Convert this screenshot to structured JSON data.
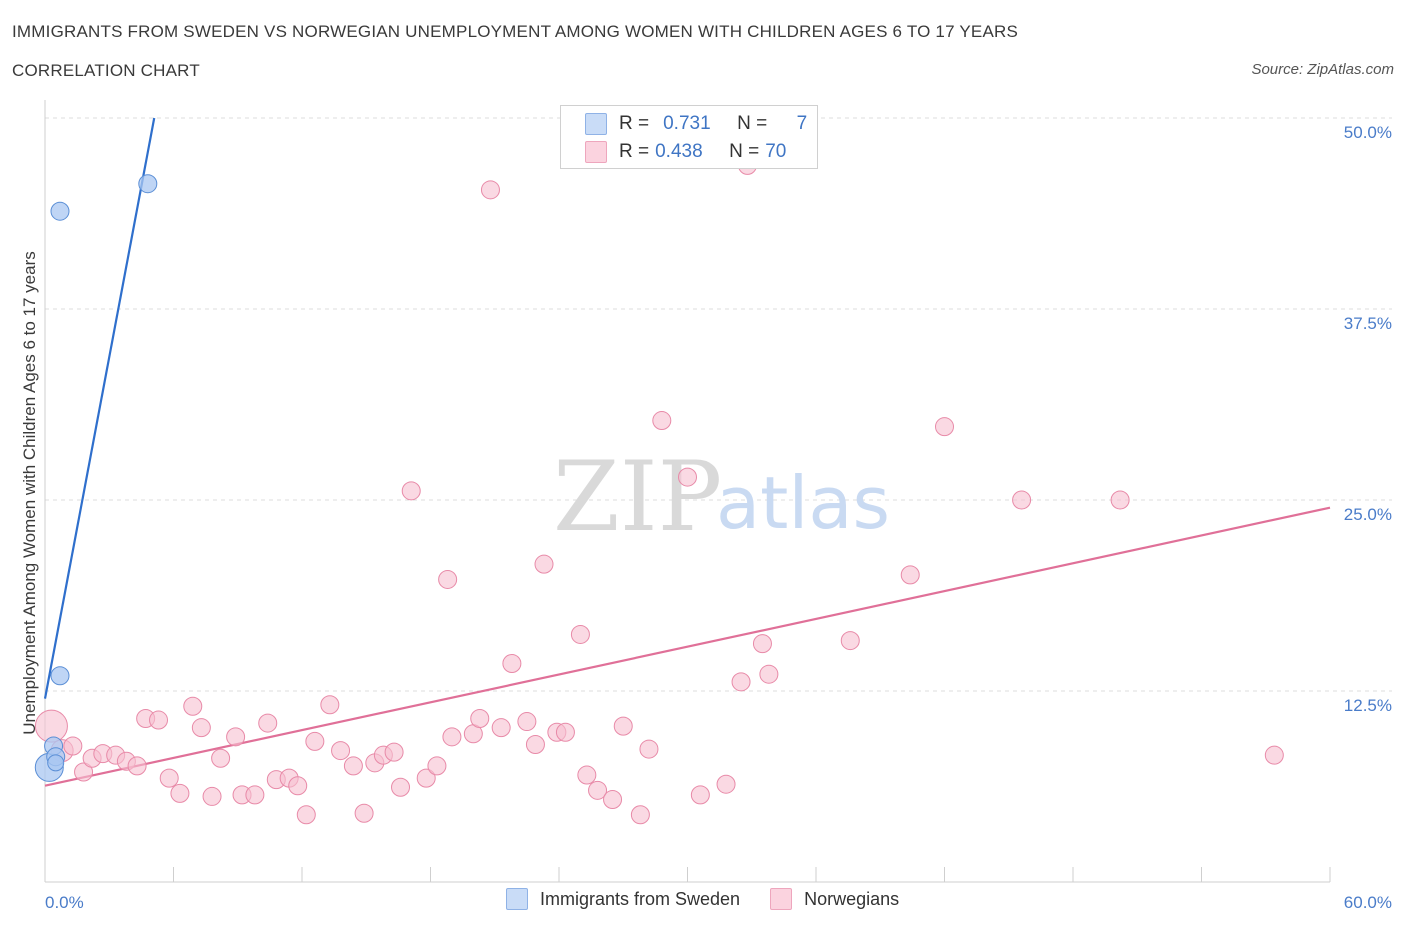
{
  "header": {
    "title": "IMMIGRANTS FROM SWEDEN VS NORWEGIAN UNEMPLOYMENT AMONG WOMEN WITH CHILDREN AGES 6 TO 17 YEARS",
    "subtitle": "CORRELATION CHART",
    "source": "Source: ZipAtlas.com"
  },
  "watermark": {
    "zip": "ZIP",
    "atlas": "atlas"
  },
  "legend": {
    "r_label": "R =",
    "n_label": "N =",
    "rows": [
      {
        "r": "0.731",
        "n": "7",
        "color": "#a9c7f2"
      },
      {
        "r": "0.438",
        "n": "70",
        "color": "#f7bfd0"
      }
    ]
  },
  "chart_data": {
    "type": "scatter",
    "ylabel": "Unemployment Among Women with Children Ages 6 to 17 years",
    "xlim": [
      0,
      60
    ],
    "ylim": [
      0,
      50
    ],
    "x_tick_labels": [
      "0.0%",
      "60.0%"
    ],
    "y_tick_values": [
      12.5,
      25.0,
      37.5,
      50.0
    ],
    "y_tick_labels": [
      "12.5%",
      "25.0%",
      "37.5%",
      "50.0%"
    ],
    "grid": "horizontal dashed",
    "legend_position": "top-center",
    "series": [
      {
        "name": "Immigrants from Sweden",
        "color": "#a9c7f2",
        "stroke": "#5b8fd6",
        "line_color": "#2f6fcc",
        "trend": {
          "x": [
            0.0,
            5.1
          ],
          "y": [
            12.0,
            50.0
          ]
        },
        "points": [
          {
            "x": 0.2,
            "y": 7.5,
            "size": 14
          },
          {
            "x": 0.4,
            "y": 8.9,
            "size": 9
          },
          {
            "x": 0.5,
            "y": 8.2,
            "size": 9
          },
          {
            "x": 0.5,
            "y": 7.8,
            "size": 8
          },
          {
            "x": 0.7,
            "y": 43.9,
            "size": 9
          },
          {
            "x": 0.7,
            "y": 13.5,
            "size": 9
          },
          {
            "x": 4.8,
            "y": 45.7,
            "size": 9
          }
        ]
      },
      {
        "name": "Norwegians",
        "color": "#f7bfd0",
        "stroke": "#e88aa8",
        "line_color": "#e07098",
        "trend": {
          "x": [
            0.0,
            60.0
          ],
          "y": [
            6.3,
            24.5
          ]
        },
        "points": [
          {
            "x": 0.3,
            "y": 10.2,
            "size": 16
          },
          {
            "x": 0.8,
            "y": 8.6,
            "size": 11
          },
          {
            "x": 1.3,
            "y": 8.9,
            "size": 9
          },
          {
            "x": 1.8,
            "y": 7.2,
            "size": 9
          },
          {
            "x": 2.2,
            "y": 8.1,
            "size": 9
          },
          {
            "x": 2.7,
            "y": 8.4,
            "size": 9
          },
          {
            "x": 3.3,
            "y": 8.3,
            "size": 9
          },
          {
            "x": 3.8,
            "y": 7.9,
            "size": 9
          },
          {
            "x": 4.3,
            "y": 7.6,
            "size": 9
          },
          {
            "x": 4.7,
            "y": 10.7,
            "size": 9
          },
          {
            "x": 5.3,
            "y": 10.6,
            "size": 9
          },
          {
            "x": 5.8,
            "y": 6.8,
            "size": 9
          },
          {
            "x": 6.3,
            "y": 5.8,
            "size": 9
          },
          {
            "x": 6.9,
            "y": 11.5,
            "size": 9
          },
          {
            "x": 7.3,
            "y": 10.1,
            "size": 9
          },
          {
            "x": 7.8,
            "y": 5.6,
            "size": 9
          },
          {
            "x": 8.2,
            "y": 8.1,
            "size": 9
          },
          {
            "x": 8.9,
            "y": 9.5,
            "size": 9
          },
          {
            "x": 9.2,
            "y": 5.7,
            "size": 9
          },
          {
            "x": 9.8,
            "y": 5.7,
            "size": 9
          },
          {
            "x": 10.4,
            "y": 10.4,
            "size": 9
          },
          {
            "x": 10.8,
            "y": 6.7,
            "size": 9
          },
          {
            "x": 11.4,
            "y": 6.8,
            "size": 9
          },
          {
            "x": 11.8,
            "y": 6.3,
            "size": 9
          },
          {
            "x": 12.2,
            "y": 4.4,
            "size": 9
          },
          {
            "x": 12.6,
            "y": 9.2,
            "size": 9
          },
          {
            "x": 13.3,
            "y": 11.6,
            "size": 9
          },
          {
            "x": 13.8,
            "y": 8.6,
            "size": 9
          },
          {
            "x": 14.4,
            "y": 7.6,
            "size": 9
          },
          {
            "x": 14.9,
            "y": 4.5,
            "size": 9
          },
          {
            "x": 15.4,
            "y": 7.8,
            "size": 9
          },
          {
            "x": 15.8,
            "y": 8.3,
            "size": 9
          },
          {
            "x": 16.3,
            "y": 8.5,
            "size": 9
          },
          {
            "x": 16.6,
            "y": 6.2,
            "size": 9
          },
          {
            "x": 17.1,
            "y": 25.6,
            "size": 9
          },
          {
            "x": 17.8,
            "y": 6.8,
            "size": 9
          },
          {
            "x": 18.3,
            "y": 7.6,
            "size": 9
          },
          {
            "x": 18.8,
            "y": 19.8,
            "size": 9
          },
          {
            "x": 19.0,
            "y": 9.5,
            "size": 9
          },
          {
            "x": 20.0,
            "y": 9.7,
            "size": 9
          },
          {
            "x": 20.3,
            "y": 10.7,
            "size": 9
          },
          {
            "x": 20.8,
            "y": 45.3,
            "size": 9
          },
          {
            "x": 21.3,
            "y": 10.1,
            "size": 9
          },
          {
            "x": 21.8,
            "y": 14.3,
            "size": 9
          },
          {
            "x": 22.5,
            "y": 10.5,
            "size": 9
          },
          {
            "x": 22.9,
            "y": 9.0,
            "size": 9
          },
          {
            "x": 23.3,
            "y": 20.8,
            "size": 9
          },
          {
            "x": 23.9,
            "y": 9.8,
            "size": 9
          },
          {
            "x": 24.3,
            "y": 9.8,
            "size": 9
          },
          {
            "x": 25.0,
            "y": 16.2,
            "size": 9
          },
          {
            "x": 25.3,
            "y": 7.0,
            "size": 9
          },
          {
            "x": 25.8,
            "y": 6.0,
            "size": 9
          },
          {
            "x": 26.5,
            "y": 5.4,
            "size": 9
          },
          {
            "x": 27.0,
            "y": 10.2,
            "size": 9
          },
          {
            "x": 27.8,
            "y": 4.4,
            "size": 9
          },
          {
            "x": 28.2,
            "y": 8.7,
            "size": 9
          },
          {
            "x": 28.8,
            "y": 30.2,
            "size": 9
          },
          {
            "x": 30.0,
            "y": 26.5,
            "size": 9
          },
          {
            "x": 30.6,
            "y": 5.7,
            "size": 9
          },
          {
            "x": 31.8,
            "y": 6.4,
            "size": 9
          },
          {
            "x": 32.5,
            "y": 13.1,
            "size": 9
          },
          {
            "x": 32.8,
            "y": 46.9,
            "size": 9
          },
          {
            "x": 33.5,
            "y": 15.6,
            "size": 9
          },
          {
            "x": 33.8,
            "y": 13.6,
            "size": 9
          },
          {
            "x": 37.6,
            "y": 15.8,
            "size": 9
          },
          {
            "x": 40.4,
            "y": 20.1,
            "size": 9
          },
          {
            "x": 42.0,
            "y": 29.8,
            "size": 9
          },
          {
            "x": 45.6,
            "y": 25.0,
            "size": 9
          },
          {
            "x": 50.2,
            "y": 25.0,
            "size": 9
          },
          {
            "x": 57.4,
            "y": 8.3,
            "size": 9
          }
        ]
      }
    ]
  }
}
